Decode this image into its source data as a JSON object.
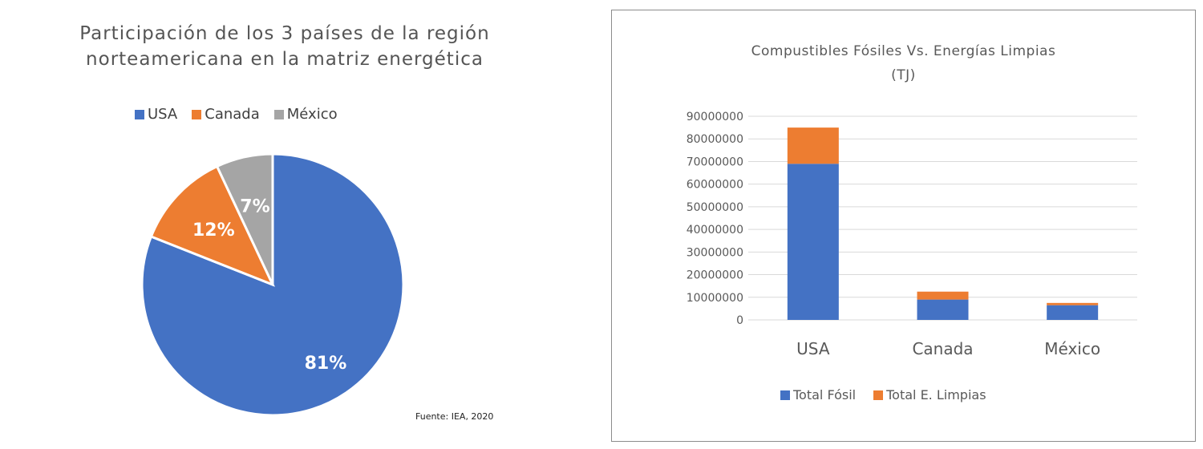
{
  "colors": {
    "usa": "#4472C4",
    "canada": "#ED7D31",
    "mexico": "#A5A5A5",
    "fosil": "#4472C4",
    "limpias": "#ED7D31"
  },
  "source_note": "Fuente:  IEA, 2020",
  "chart_data": [
    {
      "type": "pie",
      "title_line1": "Participación de los 3 países de la región",
      "title_line2": "norteamericana en la matriz energética",
      "legend_placement": "top",
      "legend": [
        "USA",
        "Canada",
        "México"
      ],
      "slices": [
        {
          "label": "USA",
          "value": 81,
          "data_label": "81%"
        },
        {
          "label": "Canada",
          "value": 12,
          "data_label": "12%"
        },
        {
          "label": "México",
          "value": 7,
          "data_label": "7%"
        }
      ]
    },
    {
      "type": "bar",
      "stacked": true,
      "title_line1": "Compustibles Fósiles Vs. Energías Limpias",
      "title_line2": "(TJ)",
      "categories": [
        "USA",
        "Canada",
        "México"
      ],
      "series": [
        {
          "name": "Total Fósil",
          "values": [
            69000000,
            9000000,
            6500000
          ]
        },
        {
          "name": "Total E. Limpias",
          "values": [
            16000000,
            3500000,
            1000000
          ]
        }
      ],
      "ylim": [
        0,
        90000000
      ],
      "yticks": [
        "0",
        "10000000",
        "20000000",
        "30000000",
        "40000000",
        "50000000",
        "60000000",
        "70000000",
        "80000000",
        "90000000"
      ],
      "grid": true,
      "legend_placement": "bottom"
    }
  ]
}
